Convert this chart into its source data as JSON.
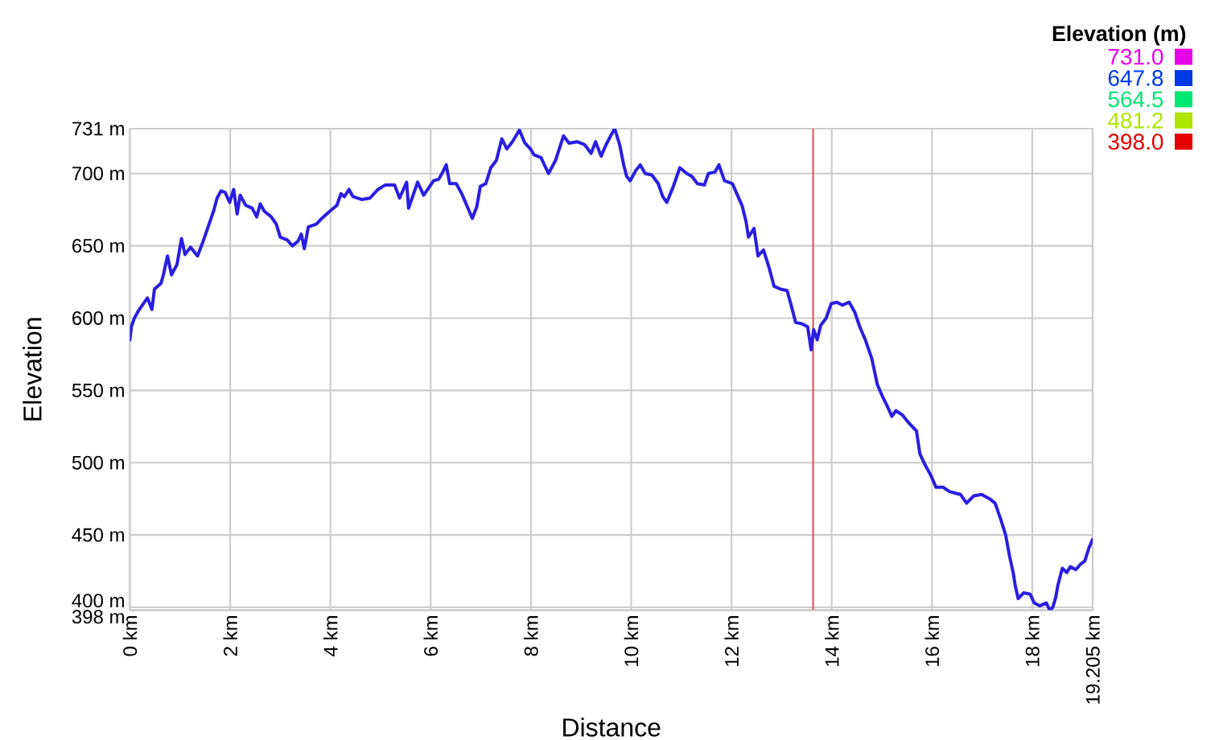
{
  "chart_data": {
    "type": "line",
    "xlabel": "Distance",
    "ylabel": "Elevation",
    "clabel": "Elevation (m)",
    "color": "#2a1ee0",
    "x": [
      0,
      0.03,
      0.09,
      0.17,
      0.25,
      0.35,
      0.44,
      0.49,
      0.62,
      0.67,
      0.75,
      0.83,
      0.94,
      1.03,
      1.1,
      1.21,
      1.35,
      1.46,
      1.56,
      1.67,
      1.74,
      1.82,
      1.9,
      1.99,
      2.07,
      2.14,
      2.2,
      2.31,
      2.44,
      2.53,
      2.6,
      2.68,
      2.82,
      2.92,
      3.0,
      3.14,
      3.24,
      3.35,
      3.42,
      3.48,
      3.56,
      3.72,
      3.83,
      3.99,
      4.13,
      4.21,
      4.28,
      4.37,
      4.45,
      4.63,
      4.79,
      4.95,
      5.09,
      5.28,
      5.38,
      5.52,
      5.56,
      5.74,
      5.86,
      6.06,
      6.16,
      6.24,
      6.31,
      6.38,
      6.51,
      6.62,
      6.72,
      6.83,
      6.92,
      6.99,
      7.1,
      7.2,
      7.31,
      7.42,
      7.52,
      7.63,
      7.77,
      7.88,
      7.99,
      8.06,
      8.2,
      8.35,
      8.49,
      8.65,
      8.76,
      8.92,
      9.07,
      9.2,
      9.29,
      9.4,
      9.5,
      9.59,
      9.67,
      9.77,
      9.85,
      9.91,
      9.98,
      10.09,
      10.18,
      10.28,
      10.41,
      10.54,
      10.63,
      10.71,
      10.84,
      10.97,
      11.11,
      11.21,
      11.32,
      11.46,
      11.54,
      11.67,
      11.75,
      11.86,
      12.02,
      12.12,
      12.21,
      12.29,
      12.34,
      12.45,
      12.53,
      12.64,
      12.75,
      12.85,
      12.98,
      13.11,
      13.19,
      13.28,
      13.41,
      13.52,
      13.59,
      13.64,
      13.71,
      13.78,
      13.89,
      13.99,
      14.1,
      14.21,
      14.35,
      14.46,
      14.56,
      14.67,
      14.8,
      14.91,
      15.01,
      15.11,
      15.2,
      15.28,
      15.41,
      15.55,
      15.69,
      15.76,
      15.87,
      15.98,
      16.08,
      16.22,
      16.35,
      16.46,
      16.57,
      16.69,
      16.83,
      16.99,
      17.15,
      17.26,
      17.37,
      17.47,
      17.55,
      17.62,
      17.66,
      17.72,
      17.83,
      17.96,
      18.04,
      18.15,
      18.28,
      18.35,
      18.41,
      18.47,
      18.51,
      18.6,
      18.69,
      18.76,
      18.87,
      18.97,
      19.05,
      19.13,
      19.205
    ],
    "values": [
      585,
      594,
      600,
      605,
      609,
      614,
      606,
      620,
      624,
      630,
      643,
      630,
      637,
      655,
      644,
      649,
      643,
      653,
      663,
      674,
      683,
      688,
      687,
      680,
      689,
      672,
      685,
      678,
      676,
      670,
      679,
      674,
      670,
      665,
      656,
      654,
      650,
      653,
      658,
      648,
      663,
      665,
      669,
      674,
      678,
      686,
      684,
      689,
      684,
      682,
      683,
      689,
      692,
      692,
      683,
      694,
      676,
      694,
      685,
      695,
      696,
      701,
      706,
      693,
      693,
      686,
      678,
      669,
      677,
      691,
      693,
      704,
      709,
      724,
      717,
      722,
      730,
      721,
      717,
      713,
      711,
      700,
      709,
      726,
      721,
      722,
      720,
      714,
      722,
      712,
      720,
      726,
      731,
      720,
      706,
      698,
      695,
      702,
      706,
      700,
      699,
      693,
      684,
      680,
      691,
      704,
      700,
      698,
      693,
      692,
      700,
      701,
      706,
      695,
      693,
      685,
      678,
      667,
      656,
      662,
      643,
      647,
      635,
      622,
      620,
      619,
      609,
      597,
      596,
      594,
      578,
      592,
      585,
      595,
      600,
      610,
      611,
      609,
      611,
      604,
      594,
      585,
      572,
      554,
      546,
      539,
      532,
      536,
      533,
      527,
      522,
      506,
      498,
      491,
      483,
      483,
      480,
      479,
      478,
      472,
      477,
      478,
      475,
      472,
      461,
      450,
      435,
      424,
      415,
      406,
      410,
      409,
      403,
      401,
      403,
      398,
      400,
      407,
      415,
      427,
      424,
      428,
      426,
      430,
      432,
      441,
      447
    ],
    "clim": [
      398,
      731
    ],
    "cticks": [
      {
        "value": 731.0,
        "label": "731.0"
      },
      {
        "value": 647.8,
        "label": "647.8"
      },
      {
        "value": 564.5,
        "label": "564.5"
      },
      {
        "value": 481.2,
        "label": "481.2"
      },
      {
        "value": 398.0,
        "label": "398.0"
      }
    ],
    "xlim": [
      0,
      19.205
    ],
    "xticks": [
      {
        "value": 0,
        "label": "0 km"
      },
      {
        "value": 2,
        "label": "2 km"
      },
      {
        "value": 4,
        "label": "4 km"
      },
      {
        "value": 6,
        "label": "6 km"
      },
      {
        "value": 8,
        "label": "8 km"
      },
      {
        "value": 10,
        "label": "10 km"
      },
      {
        "value": 12,
        "label": "12 km"
      },
      {
        "value": 14,
        "label": "14 km"
      },
      {
        "value": 16,
        "label": "16 km"
      },
      {
        "value": 18,
        "label": "18 km"
      },
      {
        "value": 19.205,
        "label": "19.205 km"
      }
    ],
    "ylim": [
      398,
      731
    ],
    "yticks": [
      {
        "value": 398,
        "label": "398 m"
      },
      {
        "value": 400,
        "label": "400 m"
      },
      {
        "value": 450,
        "label": "450 m"
      },
      {
        "value": 500,
        "label": "500 m"
      },
      {
        "value": 550,
        "label": "550 m"
      },
      {
        "value": 600,
        "label": "600 m"
      },
      {
        "value": 650,
        "label": "650 m"
      },
      {
        "value": 700,
        "label": "700 m"
      },
      {
        "value": 731,
        "label": "731 m"
      }
    ],
    "grid": true,
    "ref_lines": [
      {
        "axis": "x",
        "value": 13.63,
        "color": "#ee4444"
      }
    ]
  }
}
